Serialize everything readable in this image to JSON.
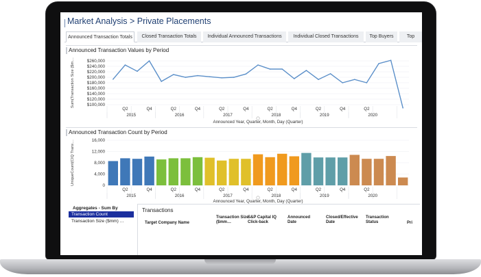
{
  "app": {
    "title": "Market Analysis > Private Placements"
  },
  "tabs": [
    {
      "label": "Announced Transaction Totals",
      "active": true
    },
    {
      "label": "Closed Transaction Totals",
      "active": false
    },
    {
      "label": "Individual Announced Transactions",
      "active": false
    },
    {
      "label": "Individual Closed Transactions",
      "active": false
    },
    {
      "label": "Top Buyers",
      "active": false
    },
    {
      "label": "Top",
      "active": false
    }
  ],
  "chart_data": [
    {
      "type": "line",
      "title": "Announced Transaction Values by Period",
      "ylabel": "Sum(Transaction Size ($m…",
      "xlabel": "Announced Year, Quarter, Month, Day (Quarter)",
      "yticks": [
        "$260,000",
        "$240,000",
        "$220,000",
        "$200,000",
        "$180,000",
        "$160,000",
        "$140,000",
        "$120,000",
        "$100,000"
      ],
      "ylim": [
        100000,
        265000
      ],
      "quarter_labels": [
        "Q2",
        "Q4",
        "Q2",
        "Q4",
        "Q2",
        "Q4",
        "Q2",
        "Q4",
        "Q2",
        "Q4",
        "Q2"
      ],
      "year_labels": [
        "2015",
        "2016",
        "2017",
        "2018",
        "2019",
        "2020"
      ],
      "color": "#5b8fc9",
      "values": [
        193000,
        245000,
        222000,
        260000,
        185000,
        210000,
        200000,
        206000,
        202000,
        198000,
        200000,
        212000,
        245000,
        230000,
        230000,
        195000,
        225000,
        192000,
        213000,
        180000,
        192000,
        180000,
        250000,
        262000,
        88000
      ]
    },
    {
      "type": "bar",
      "title": "Announced Transaction Count by Period",
      "ylabel": "UniqueCount(CIQ Trans…",
      "xlabel": "Announced Year, Quarter, Month, Day (Quarter)",
      "yticks": [
        "16,000",
        "12,000",
        "8,000",
        "4,000",
        "0"
      ],
      "ylim": [
        0,
        16000
      ],
      "quarter_labels": [
        "Q2",
        "Q4",
        "Q2",
        "Q4",
        "Q2",
        "Q4",
        "Q2",
        "Q4",
        "Q2",
        "Q4",
        "Q2"
      ],
      "year_labels": [
        "2015",
        "2016",
        "2017",
        "2018",
        "2019",
        "2020"
      ],
      "values": [
        8600,
        9600,
        9400,
        10200,
        9200,
        9600,
        9600,
        10000,
        9800,
        8800,
        9400,
        9400,
        11000,
        10000,
        11200,
        10300,
        11500,
        9900,
        9900,
        9900,
        10800,
        9400,
        9400,
        10400,
        2800
      ],
      "colors": [
        "#3f78b8",
        "#3f78b8",
        "#3f78b8",
        "#3f78b8",
        "#7cbf3c",
        "#7cbf3c",
        "#7cbf3c",
        "#7cbf3c",
        "#e0c02a",
        "#e0c02a",
        "#e0c02a",
        "#e0c02a",
        "#f09a1e",
        "#f09a1e",
        "#f09a1e",
        "#f09a1e",
        "#5f9ea8",
        "#5f9ea8",
        "#5f9ea8",
        "#5f9ea8",
        "#cc8a50",
        "#cc8a50",
        "#cc8a50",
        "#cc8a50",
        "#cc8a50"
      ]
    }
  ],
  "aggregates": {
    "title": "Aggregates - Sum By",
    "items": [
      {
        "label": "Transaction Count",
        "selected": true
      },
      {
        "label": "Transaction Size ($mm) …",
        "selected": false
      }
    ]
  },
  "transactions": {
    "title": "Transactions",
    "columns": [
      {
        "label": "Target Company Name"
      },
      {
        "label": "Transaction Size ($mm…"
      },
      {
        "label": "S&P Capital IQ Click-back"
      },
      {
        "label": "Announced Date"
      },
      {
        "label": "Closed/Effective Date"
      },
      {
        "label": "Transaction Status"
      },
      {
        "label": "Pri"
      }
    ]
  }
}
